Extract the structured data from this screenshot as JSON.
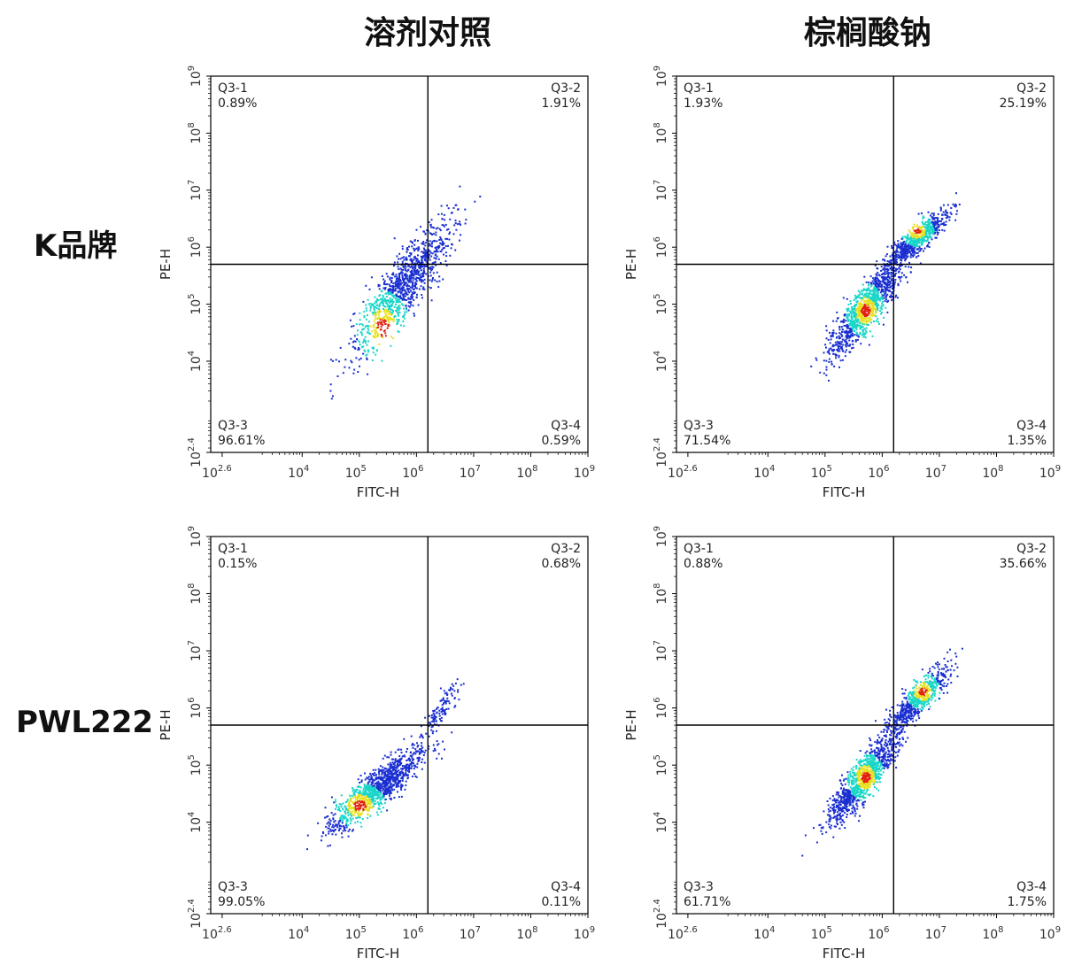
{
  "column_titles": [
    "溶剂对照",
    "棕榈酸钠"
  ],
  "row_titles": [
    "K品牌",
    "PWL222"
  ],
  "colors": {
    "density_low": "#1a2fd0",
    "density_mid": "#18d6c8",
    "density_high": "#e8e020",
    "density_peak": "#e02010",
    "gate_lines": "#000000"
  },
  "chart_data": [
    {
      "type": "scatter",
      "subtype": "flow-cytometry-density",
      "row": "K品牌",
      "column": "溶剂对照",
      "xlabel": "FITC-H",
      "ylabel": "PE-H",
      "xlim": [
        2.4,
        9
      ],
      "ylim": [
        2.4,
        9
      ],
      "scale": "log10",
      "x_ticks": [
        "10^2.6",
        "10^4",
        "10^5",
        "10^6",
        "10^7",
        "10^8",
        "10^9"
      ],
      "y_ticks": [
        "10^2.4",
        "10^4",
        "10^5",
        "10^6",
        "10^7",
        "10^8",
        "10^9"
      ],
      "gate": {
        "x": 6.2,
        "y": 5.7
      },
      "quadrants": [
        {
          "name": "Q3-1",
          "percent": "0.89%"
        },
        {
          "name": "Q3-2",
          "percent": "1.91%"
        },
        {
          "name": "Q3-3",
          "percent": "96.61%"
        },
        {
          "name": "Q3-4",
          "percent": "0.59%"
        }
      ],
      "clusters": [
        {
          "x": [
            4.8,
            6.7
          ],
          "y": [
            4.0,
            6.6
          ],
          "peak": [
            5.4,
            4.6
          ],
          "level": "high"
        }
      ]
    },
    {
      "type": "scatter",
      "subtype": "flow-cytometry-density",
      "row": "K品牌",
      "column": "棕榈酸钠",
      "xlabel": "FITC-H",
      "ylabel": "PE-H",
      "xlim": [
        2.4,
        9
      ],
      "ylim": [
        2.4,
        9
      ],
      "scale": "log10",
      "x_ticks": [
        "10^2.6",
        "10^4",
        "10^5",
        "10^6",
        "10^7",
        "10^8",
        "10^9"
      ],
      "y_ticks": [
        "10^2.4",
        "10^4",
        "10^5",
        "10^6",
        "10^7",
        "10^8",
        "10^9"
      ],
      "gate": {
        "x": 6.2,
        "y": 5.7
      },
      "quadrants": [
        {
          "name": "Q3-1",
          "percent": "1.93%"
        },
        {
          "name": "Q3-2",
          "percent": "25.19%"
        },
        {
          "name": "Q3-3",
          "percent": "71.54%"
        },
        {
          "name": "Q3-4",
          "percent": "1.35%"
        }
      ],
      "clusters": [
        {
          "x": [
            5.0,
            6.4
          ],
          "y": [
            4.0,
            5.9
          ],
          "peak": [
            5.7,
            4.9
          ],
          "level": "high"
        },
        {
          "x": [
            6.0,
            7.2
          ],
          "y": [
            5.6,
            6.7
          ],
          "peak": [
            6.6,
            6.3
          ],
          "level": "mid"
        }
      ]
    },
    {
      "type": "scatter",
      "subtype": "flow-cytometry-density",
      "row": "PWL222",
      "column": "溶剂对照",
      "xlabel": "FITC-H",
      "ylabel": "PE-H",
      "xlim": [
        2.4,
        9
      ],
      "ylim": [
        2.4,
        9
      ],
      "scale": "log10",
      "x_ticks": [
        "10^2.6",
        "10^4",
        "10^5",
        "10^6",
        "10^7",
        "10^8",
        "10^9"
      ],
      "y_ticks": [
        "10^2.4",
        "10^4",
        "10^5",
        "10^6",
        "10^7",
        "10^8",
        "10^9"
      ],
      "gate": {
        "x": 6.2,
        "y": 5.7
      },
      "quadrants": [
        {
          "name": "Q3-1",
          "percent": "0.15%"
        },
        {
          "name": "Q3-2",
          "percent": "0.68%"
        },
        {
          "name": "Q3-3",
          "percent": "99.05%"
        },
        {
          "name": "Q3-4",
          "percent": "0.11%"
        }
      ],
      "clusters": [
        {
          "x": [
            4.4,
            6.2
          ],
          "y": [
            3.8,
            5.4
          ],
          "peak": [
            5.0,
            4.3
          ],
          "level": "high"
        },
        {
          "x": [
            6.0,
            6.8
          ],
          "y": [
            5.4,
            6.5
          ],
          "peak": [
            6.3,
            5.9
          ],
          "level": "low"
        }
      ]
    },
    {
      "type": "scatter",
      "subtype": "flow-cytometry-density",
      "row": "PWL222",
      "column": "棕榈酸钠",
      "xlabel": "FITC-H",
      "ylabel": "PE-H",
      "xlim": [
        2.4,
        9
      ],
      "ylim": [
        2.4,
        9
      ],
      "scale": "log10",
      "x_ticks": [
        "10^2.6",
        "10^4",
        "10^5",
        "10^6",
        "10^7",
        "10^8",
        "10^9"
      ],
      "y_ticks": [
        "10^2.4",
        "10^4",
        "10^5",
        "10^6",
        "10^7",
        "10^8",
        "10^9"
      ],
      "gate": {
        "x": 6.2,
        "y": 5.7
      },
      "quadrants": [
        {
          "name": "Q3-1",
          "percent": "0.88%"
        },
        {
          "name": "Q3-2",
          "percent": "35.66%"
        },
        {
          "name": "Q3-3",
          "percent": "61.71%"
        },
        {
          "name": "Q3-4",
          "percent": "1.75%"
        }
      ],
      "clusters": [
        {
          "x": [
            5.0,
            6.3
          ],
          "y": [
            3.9,
            5.6
          ],
          "peak": [
            5.7,
            4.8
          ],
          "level": "high"
        },
        {
          "x": [
            6.0,
            7.2
          ],
          "y": [
            5.5,
            6.8
          ],
          "peak": [
            6.7,
            6.3
          ],
          "level": "mid"
        }
      ]
    }
  ]
}
